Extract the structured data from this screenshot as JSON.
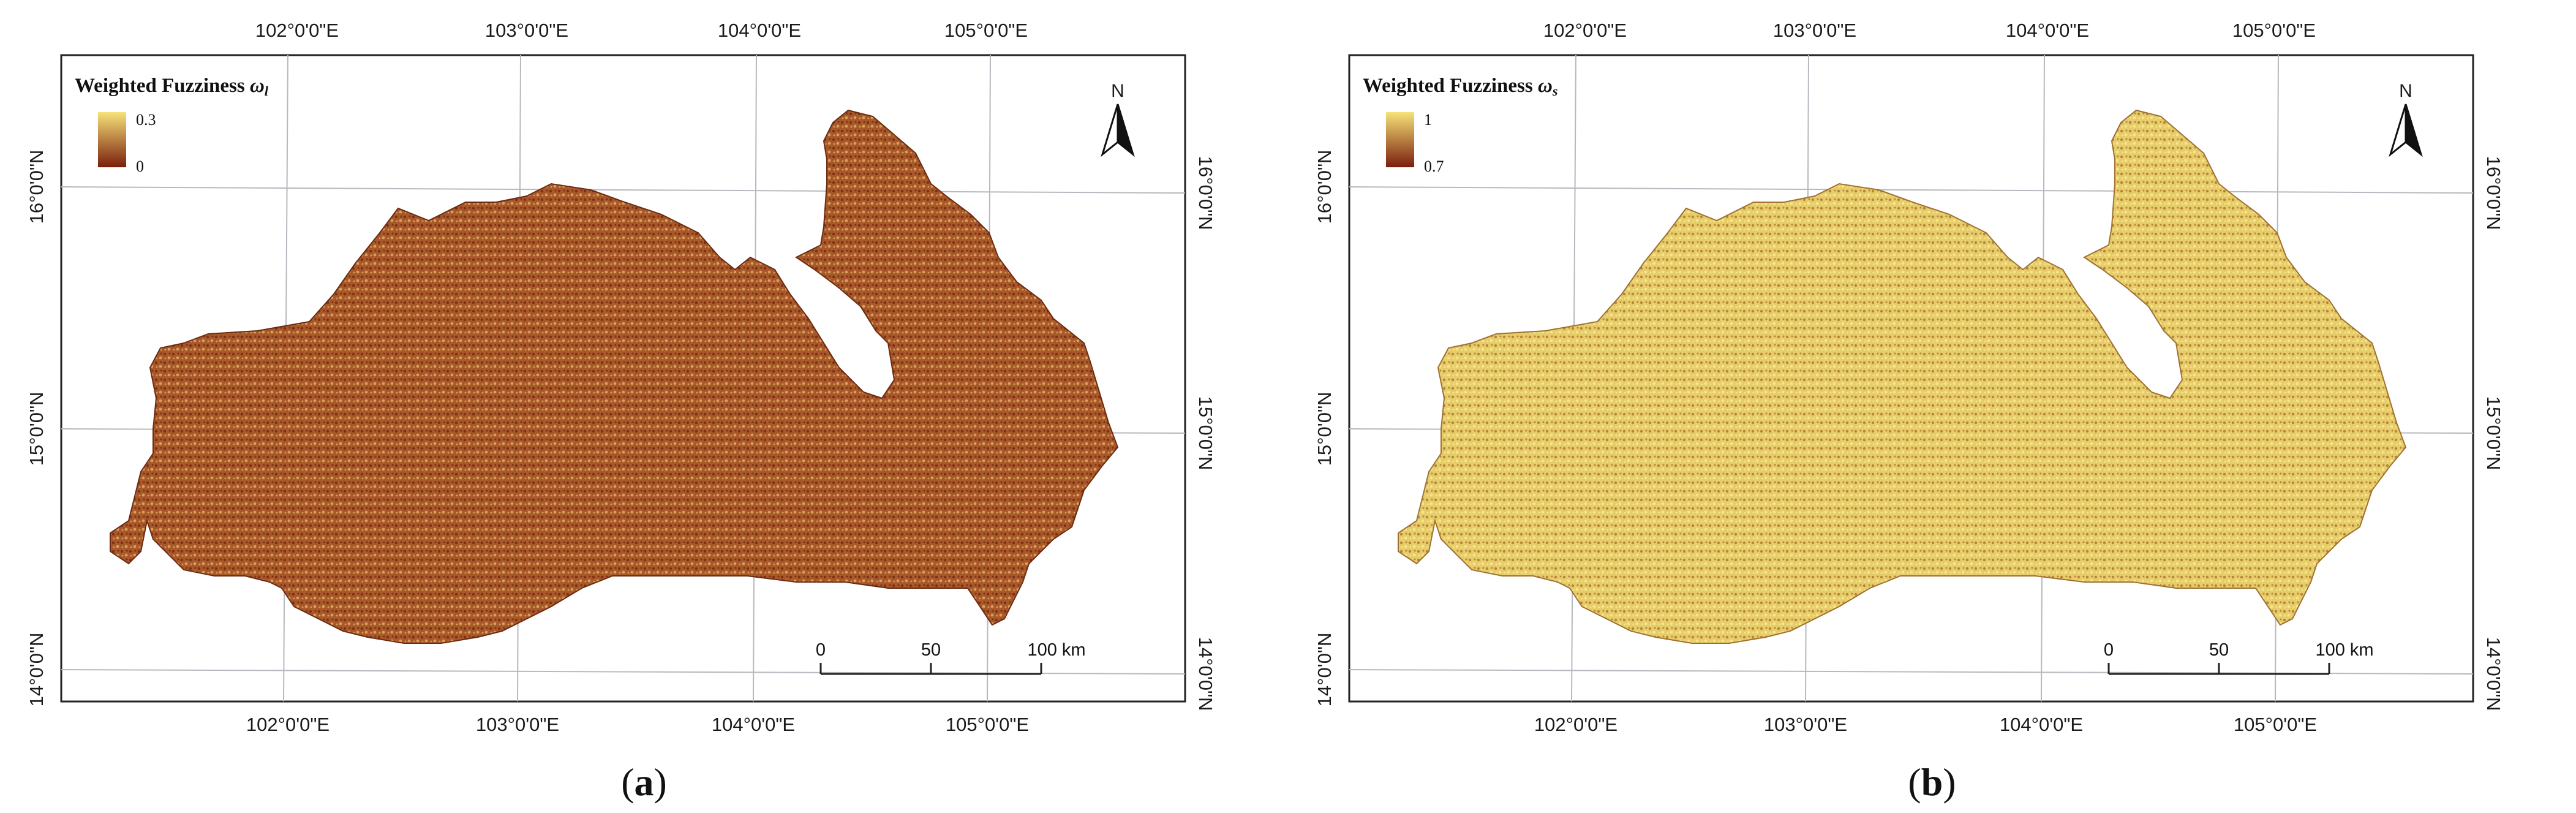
{
  "colors": {
    "ramp_high": "#f7e27a",
    "ramp_low": "#7a1e0c",
    "grid": "#b8b8c0",
    "frame": "#222222"
  },
  "panels": [
    {
      "title": "Weighted Fuzziness",
      "symbol": "ω",
      "subscript": "l",
      "legend_max": "0.3",
      "legend_min": "0",
      "label": "a",
      "fill_color": "#a9582a",
      "fill_dark": "#7d2f14",
      "fill_light": "#d4a05a"
    },
    {
      "title": "Weighted Fuzziness",
      "symbol": "ω",
      "subscript": "s",
      "legend_max": "1",
      "legend_min": "0.7",
      "label": "b",
      "fill_color": "#e6cd6a",
      "fill_dark": "#b8833a",
      "fill_light": "#f6e58a"
    }
  ],
  "grid_labels": {
    "longitudes": [
      "102°0'0\"E",
      "103°0'0\"E",
      "104°0'0\"E",
      "105°0'0\"E"
    ],
    "latitudes": [
      "16°0'0\"N",
      "15°0'0\"N",
      "14°0'0\"N"
    ]
  },
  "north_arrow_letter": "N",
  "scale_bar": {
    "ticks": [
      "0",
      "50",
      "100 km"
    ]
  }
}
